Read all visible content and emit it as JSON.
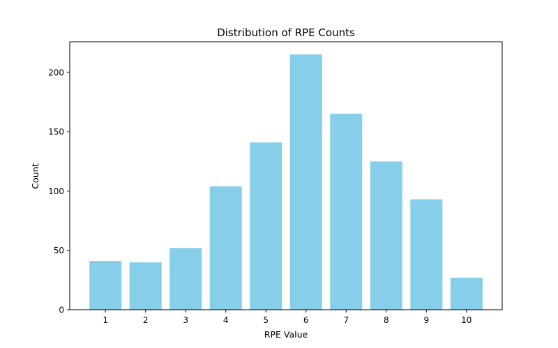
{
  "chart_data": {
    "type": "bar",
    "title": "Distribution of RPE Counts",
    "xlabel": "RPE Value",
    "ylabel": "Count",
    "categories": [
      "1",
      "2",
      "3",
      "4",
      "5",
      "6",
      "7",
      "8",
      "9",
      "10"
    ],
    "values": [
      41,
      40,
      52,
      104,
      141,
      215,
      165,
      125,
      93,
      27
    ],
    "xlim": [
      0.11,
      10.89
    ],
    "ylim": [
      0,
      225.75
    ],
    "yticks": [
      0,
      50,
      100,
      150,
      200
    ],
    "grid": false,
    "bar_color": "#87CEEB"
  }
}
